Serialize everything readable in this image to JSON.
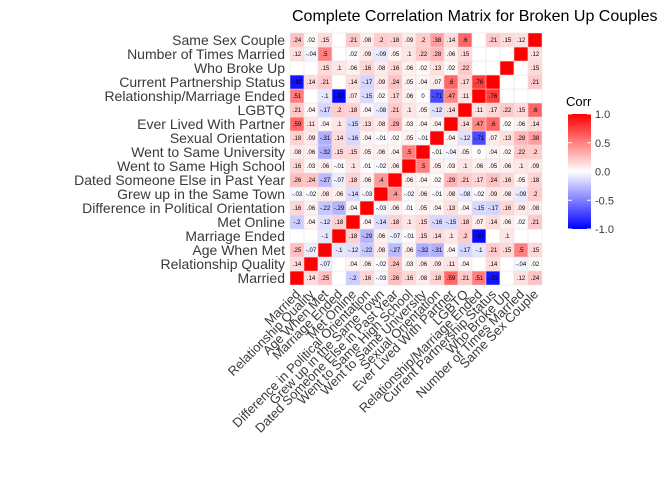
{
  "chart_data": {
    "type": "heatmap",
    "title": "Complete Correlation Matrix for Broken Up Couples",
    "variables": [
      "Married",
      "Relationship Quality",
      "Age When Met",
      "Marriage Ended",
      "Met Online",
      "Difference in Political Orientation",
      "Grew up in the Same Town",
      "Dated Someone Else in Past Year",
      "Went to Same High School",
      "Went to Same University",
      "Sexual Orientation",
      "Ever Lived With Partner",
      "LGBTQ",
      "Relationship/Marriage Ended",
      "Current Partnership Status",
      "Who Broke Up",
      "Number of Times Married",
      "Same Sex Couple"
    ],
    "matrix": [
      [
        1,
        0.14,
        0.25,
        null,
        0.2,
        0.16,
        0.03,
        0.26,
        0.16,
        0.08,
        0.18,
        0.59,
        0.21,
        0.51,
        0.92,
        null,
        0.12,
        0.24
      ],
      [
        0.14,
        1,
        0.07,
        null,
        0.04,
        0.06,
        0.02,
        0.24,
        0.03,
        0.06,
        0.09,
        0.11,
        0.04,
        null,
        0.14,
        null,
        0.04,
        0.02
      ],
      [
        0.25,
        0.07,
        1,
        0.1,
        0.12,
        0.22,
        0.08,
        0.27,
        0.06,
        0.32,
        0.31,
        0.04,
        0.17,
        0.1,
        0.21,
        0.15,
        0.5,
        0.15
      ],
      [
        null,
        null,
        0.1,
        1,
        0.18,
        0.29,
        0.06,
        0.07,
        0.01,
        0.15,
        0.14,
        0.1,
        0.2,
        0.97,
        null,
        0.1,
        null,
        null
      ],
      [
        0.2,
        0.04,
        0.12,
        0.18,
        1,
        0.04,
        0.14,
        0.18,
        0.1,
        0.15,
        0.16,
        0.15,
        0.18,
        0.07,
        0.14,
        0.06,
        0.02,
        0.21
      ],
      [
        0.16,
        0.06,
        0.22,
        0.29,
        0.04,
        1,
        0.03,
        0.06,
        0.01,
        0.05,
        0.04,
        0.13,
        0.04,
        0.15,
        0.17,
        0.16,
        0.09,
        0.08
      ],
      [
        0.03,
        0.02,
        0.08,
        0.06,
        0.14,
        0.03,
        1,
        0.4,
        0.02,
        0.06,
        0.01,
        0.08,
        0.08,
        0.02,
        0.09,
        0.08,
        0.09,
        0.2
      ],
      [
        0.26,
        0.24,
        0.27,
        0.07,
        0.18,
        0.06,
        0.4,
        1,
        0.06,
        0.04,
        0.02,
        0.29,
        0.21,
        0.17,
        0.24,
        0.16,
        0.05,
        0.18
      ],
      [
        0.16,
        0.03,
        0.06,
        0.01,
        0.1,
        0.01,
        0.02,
        0.06,
        1,
        0.5,
        0.05,
        0.03,
        0.1,
        0.06,
        0.05,
        0.06,
        0.1,
        0.09
      ],
      [
        0.08,
        0.06,
        0.32,
        0.15,
        0.15,
        0.05,
        0.06,
        0.04,
        0.5,
        1,
        0.01,
        0.04,
        0.05,
        0,
        0.04,
        0.02,
        0.22,
        0.2
      ],
      [
        0.18,
        0.09,
        0.31,
        0.14,
        0.16,
        0.04,
        0.01,
        0.02,
        0.05,
        0.01,
        1,
        0.04,
        0.12,
        0.71,
        0.07,
        0.13,
        0.28,
        0.38
      ],
      [
        0.59,
        0.11,
        0.04,
        0.1,
        0.15,
        0.13,
        0.08,
        0.29,
        0.03,
        0.04,
        0.04,
        1,
        0.14,
        0.47,
        0.6,
        0.02,
        0.06,
        0.14
      ],
      [
        0.21,
        0.04,
        0.17,
        0.2,
        0.18,
        0.04,
        0.08,
        0.21,
        0.1,
        0.05,
        0.12,
        0.14,
        1,
        0.11,
        0.17,
        0.22,
        0.15,
        0.6
      ],
      [
        0.51,
        null,
        0.1,
        0.97,
        0.07,
        0.15,
        0.02,
        0.17,
        0.06,
        0,
        0.71,
        0.47,
        0.11,
        1,
        0.76,
        null,
        null,
        null
      ],
      [
        0.92,
        0.14,
        0.21,
        null,
        0.14,
        0.17,
        0.09,
        0.24,
        0.05,
        0.04,
        0.07,
        0.6,
        0.17,
        0.76,
        1,
        null,
        null,
        0.21
      ],
      [
        null,
        null,
        0.15,
        0.1,
        0.06,
        0.16,
        0.08,
        0.16,
        0.06,
        0.02,
        0.13,
        0.02,
        0.22,
        null,
        null,
        1,
        null,
        0.15
      ],
      [
        0.12,
        0.04,
        0.5,
        null,
        0.02,
        0.09,
        0.09,
        0.05,
        0.1,
        0.22,
        0.28,
        0.06,
        0.15,
        null,
        null,
        null,
        1,
        0.12
      ],
      [
        0.24,
        0.02,
        0.15,
        null,
        0.21,
        0.08,
        0.2,
        0.18,
        0.09,
        0.2,
        0.38,
        0.14,
        0.6,
        null,
        0.21,
        0.15,
        0.12,
        1
      ]
    ],
    "signs": [
      [
        1,
        1,
        1,
        0,
        -1,
        1,
        -1,
        1,
        1,
        1,
        1,
        1,
        1,
        1,
        -1,
        0,
        1,
        1
      ],
      [
        1,
        1,
        -1,
        0,
        1,
        1,
        -1,
        1,
        1,
        1,
        1,
        1,
        1,
        0,
        1,
        0,
        -1,
        1
      ],
      [
        1,
        -1,
        1,
        -1,
        -1,
        -1,
        1,
        -1,
        1,
        -1,
        -1,
        1,
        -1,
        -1,
        1,
        1,
        1,
        1
      ],
      [
        0,
        0,
        -1,
        1,
        1,
        -1,
        1,
        -1,
        -1,
        1,
        1,
        1,
        1,
        -1,
        0,
        1,
        0,
        0
      ],
      [
        -1,
        1,
        -1,
        1,
        1,
        1,
        -1,
        1,
        1,
        1,
        -1,
        -1,
        1,
        1,
        1,
        1,
        1,
        1
      ],
      [
        1,
        1,
        -1,
        -1,
        1,
        1,
        -1,
        1,
        1,
        1,
        1,
        1,
        1,
        -1,
        -1,
        1,
        1,
        1
      ],
      [
        -1,
        -1,
        1,
        1,
        -1,
        -1,
        1,
        1,
        -1,
        1,
        -1,
        1,
        -1,
        -1,
        1,
        1,
        -1,
        1
      ],
      [
        1,
        1,
        -1,
        -1,
        1,
        1,
        1,
        1,
        1,
        1,
        1,
        1,
        1,
        1,
        1,
        1,
        1,
        1
      ],
      [
        1,
        1,
        1,
        -1,
        1,
        1,
        -1,
        1,
        1,
        1,
        1,
        1,
        1,
        1,
        1,
        1,
        1,
        1
      ],
      [
        1,
        1,
        -1,
        1,
        1,
        1,
        1,
        1,
        1,
        1,
        -1,
        -1,
        1,
        1,
        1,
        1,
        1,
        1
      ],
      [
        1,
        1,
        -1,
        1,
        -1,
        1,
        -1,
        1,
        1,
        -1,
        1,
        1,
        -1,
        -1,
        1,
        1,
        1,
        1
      ],
      [
        1,
        1,
        1,
        1,
        -1,
        1,
        1,
        1,
        1,
        1,
        1,
        1,
        1,
        1,
        1,
        1,
        1,
        1
      ],
      [
        1,
        1,
        -1,
        1,
        1,
        1,
        -1,
        1,
        1,
        1,
        -1,
        1,
        1,
        1,
        1,
        1,
        1,
        1
      ],
      [
        1,
        0,
        -1,
        -1,
        1,
        -1,
        1,
        1,
        1,
        1,
        -1,
        1,
        1,
        1,
        1,
        0,
        0,
        0
      ],
      [
        -1,
        1,
        1,
        0,
        1,
        -1,
        1,
        1,
        1,
        1,
        1,
        1,
        1,
        1,
        1,
        0,
        0,
        1
      ],
      [
        0,
        0,
        1,
        1,
        1,
        1,
        1,
        1,
        1,
        1,
        1,
        1,
        1,
        0,
        0,
        1,
        0,
        1
      ],
      [
        1,
        -1,
        1,
        0,
        1,
        1,
        -1,
        1,
        1,
        1,
        1,
        1,
        1,
        0,
        0,
        0,
        1,
        1
      ],
      [
        1,
        1,
        1,
        0,
        1,
        1,
        1,
        1,
        1,
        1,
        1,
        1,
        1,
        0,
        1,
        1,
        1,
        1
      ]
    ],
    "legend": {
      "title": "Corr",
      "ticks": [
        "1.0",
        "0.5",
        "0.0",
        "-0.5",
        "-1.0"
      ],
      "tick_values": [
        1,
        0.5,
        0,
        -0.5,
        -1
      ]
    },
    "colors": {
      "positive": "#FF0000",
      "neutral": "#FFFFFF",
      "negative": "#0000FF",
      "grid": "#E3E3E3"
    },
    "scale": [
      -1,
      1
    ],
    "grid": true
  }
}
